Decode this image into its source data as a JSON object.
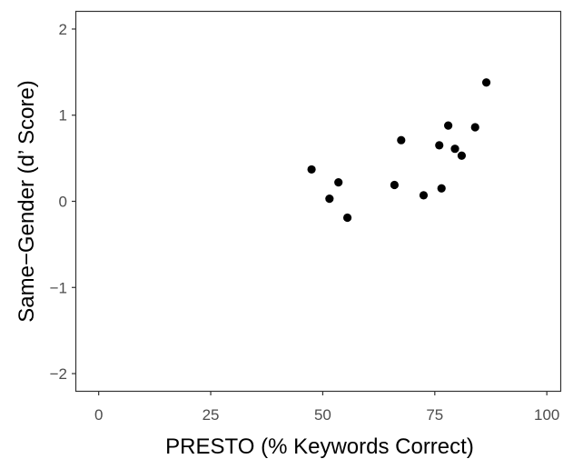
{
  "chart_data": {
    "type": "scatter",
    "xlabel": "PRESTO (% Keywords Correct)",
    "ylabel": "Same−Gender (d’ Score)",
    "xlim": [
      -5,
      103
    ],
    "ylim": [
      -2.2,
      2.2
    ],
    "x_ticks": [
      0,
      25,
      50,
      75,
      100
    ],
    "x_tick_labels": [
      "0",
      "25",
      "50",
      "75",
      "100"
    ],
    "y_ticks": [
      -2,
      -1,
      0,
      1,
      2
    ],
    "y_tick_labels": [
      "−2",
      "−1",
      "0",
      "1",
      "2"
    ],
    "grid": false,
    "series": [
      {
        "points": [
          {
            "x": 47.5,
            "y": 0.37
          },
          {
            "x": 51.5,
            "y": 0.03
          },
          {
            "x": 53.5,
            "y": 0.22
          },
          {
            "x": 55.5,
            "y": -0.19
          },
          {
            "x": 66.0,
            "y": 0.19
          },
          {
            "x": 67.5,
            "y": 0.71
          },
          {
            "x": 72.5,
            "y": 0.07
          },
          {
            "x": 76.0,
            "y": 0.65
          },
          {
            "x": 76.5,
            "y": 0.15
          },
          {
            "x": 78.0,
            "y": 0.88
          },
          {
            "x": 79.5,
            "y": 0.61
          },
          {
            "x": 81.0,
            "y": 0.53
          },
          {
            "x": 84.0,
            "y": 0.86
          },
          {
            "x": 86.5,
            "y": 1.38
          }
        ]
      }
    ]
  },
  "colors": {
    "point": "#000000",
    "panel_border": "#333333",
    "tick_mark": "#333333",
    "tick_label": "#4d4d4d",
    "axis_title": "#000000",
    "background": "#ffffff"
  }
}
